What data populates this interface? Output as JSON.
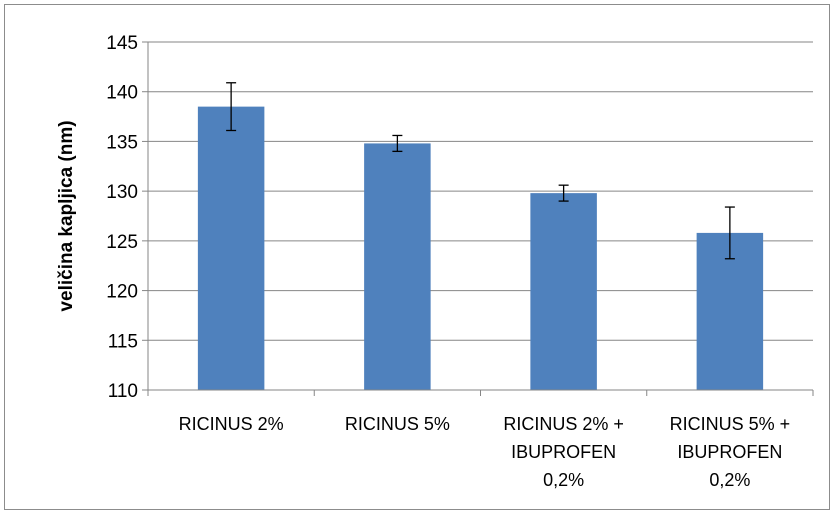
{
  "chart_data": {
    "type": "bar",
    "title": "",
    "xlabel": "",
    "ylabel": "veličina kapljica (nm)",
    "categories": [
      [
        "RICINUS 2%"
      ],
      [
        "RICINUS 5%"
      ],
      [
        "RICINUS 2% +",
        "IBUPROFEN",
        "0,2%"
      ],
      [
        "RICINUS 5% +",
        "IBUPROFEN",
        "0,2%"
      ]
    ],
    "values": [
      138.5,
      134.8,
      129.8,
      125.8
    ],
    "error": [
      2.4,
      0.8,
      0.8,
      2.6
    ],
    "ylim": [
      110,
      145
    ],
    "yticks": [
      110,
      115,
      120,
      125,
      130,
      135,
      140,
      145
    ],
    "grid": true,
    "legend": "none",
    "colors": {
      "bar": "#4f81bd",
      "grid": "#868686",
      "axis": "#868686",
      "error": "#000000"
    }
  }
}
